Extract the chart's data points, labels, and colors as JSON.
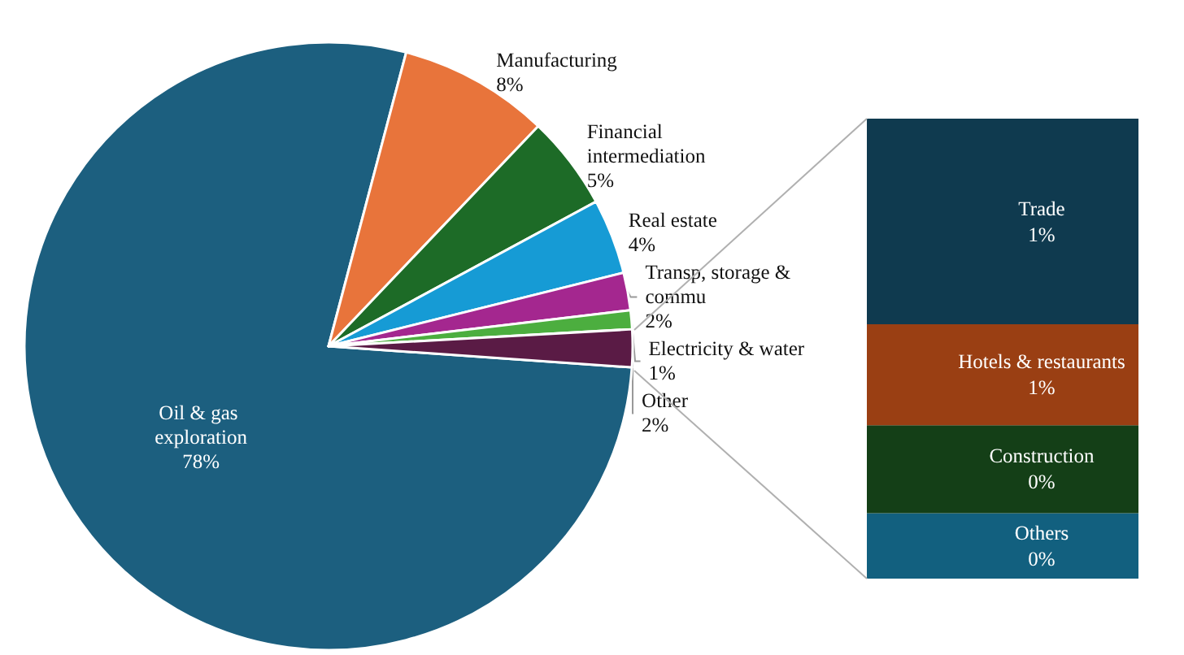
{
  "chart_data": [
    {
      "type": "pie",
      "categories": [
        "Oil & gas exploration",
        "Manufacturing",
        "Financial intermediation",
        "Real estate",
        "Transp, storage & commu",
        "Electricity & water",
        "Other"
      ],
      "values": [
        78,
        8,
        5,
        4,
        2,
        1,
        2
      ],
      "value_labels": [
        "78%",
        "8%",
        "5%",
        "4%",
        "2%",
        "1%",
        "2%"
      ],
      "colors": [
        "#1c5f7f",
        "#e8743b",
        "#1d6b27",
        "#169bd5",
        "#a4278f",
        "#4cae3f",
        "#5a1b45"
      ],
      "legend": false
    },
    {
      "type": "bar",
      "stacked": true,
      "tick_labels": false,
      "grid": false,
      "categories": [
        null
      ],
      "series": [
        {
          "name": "Others",
          "color": "#12607f",
          "values": [
            0.35
          ],
          "value_labels": [
            "0%"
          ]
        },
        {
          "name": "Construction",
          "color": "#143f17",
          "values": [
            0.47
          ],
          "value_labels": [
            "0%"
          ]
        },
        {
          "name": "Hotels & restaurants",
          "color": "#9a3f13",
          "values": [
            0.54
          ],
          "value_labels": [
            "1%"
          ]
        },
        {
          "name": "Trade",
          "color": "#0f3a4f",
          "values": [
            1.1
          ],
          "value_labels": [
            "1%"
          ]
        }
      ],
      "legend": false
    }
  ]
}
